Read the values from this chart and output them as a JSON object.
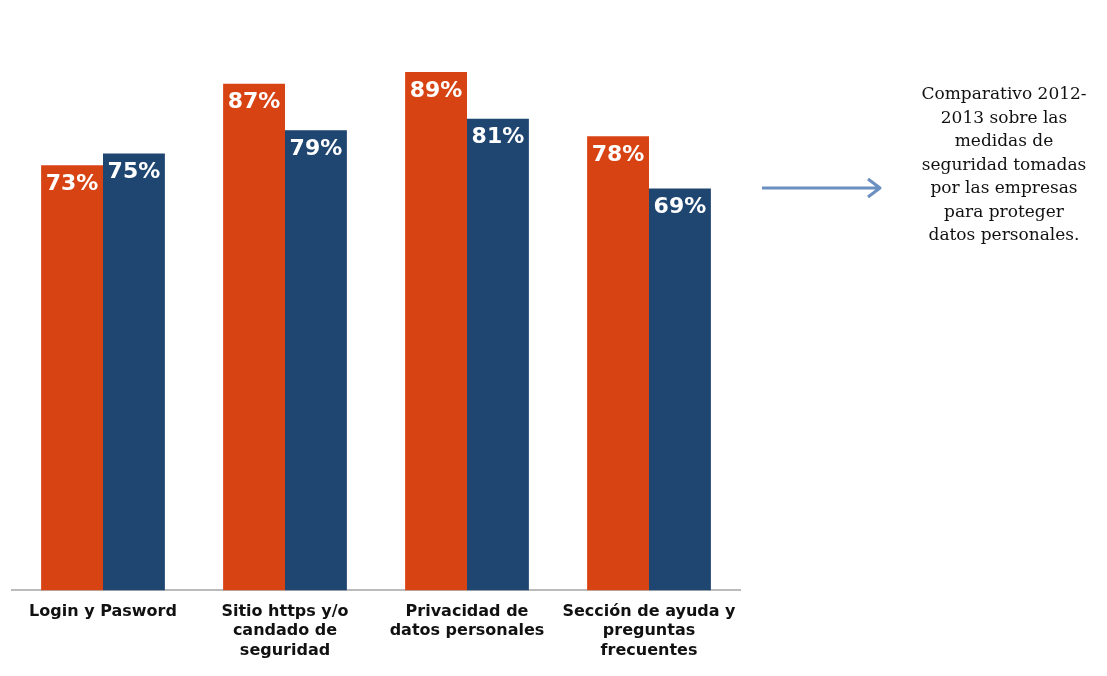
{
  "chart_data": {
    "type": "bar",
    "categories": [
      "Login y Pasword",
      "Sitio https y/o candado de seguridad",
      "Privacidad de datos personales",
      "Sección de ayuda y preguntas frecuentes"
    ],
    "series": [
      {
        "color": "#d84314",
        "values": [
          73,
          87,
          89,
          78
        ],
        "value_labels": [
          "73%",
          "87%",
          "89%",
          "78%"
        ]
      },
      {
        "color": "#1f4571",
        "values": [
          75,
          79,
          81,
          69
        ],
        "value_labels": [
          "75%",
          "79%",
          "81%",
          "69%"
        ]
      }
    ],
    "grid": false,
    "legend": false,
    "tick_labels": "x",
    "annotations": [
      "Comparativo 2012-2013 sobre las medidas de seguridad tomadas por las empresas para proteger datos personales."
    ]
  }
}
